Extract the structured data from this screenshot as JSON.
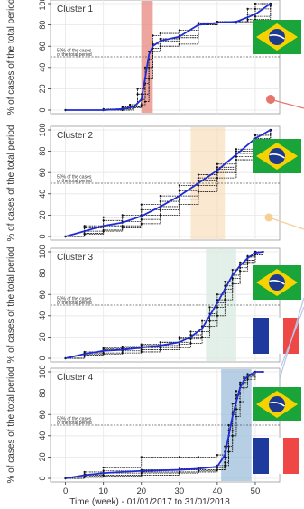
{
  "xlabel": "Time (week) - 01/01/2017 to 31/01/2018",
  "ylabel": "% of cases of the total period",
  "threshold_label_line1": "50% of the cases",
  "threshold_label_line2": "of the total period",
  "colors": {
    "median": "#1f2bd6",
    "member": "#111111",
    "threshold": "#555555",
    "cluster1_band": "#e8877f",
    "cluster2_band": "#f8d9b0",
    "cluster3_band": "#dcece3",
    "cluster4_band": "#9fbfdc",
    "flag_br_green": "#1aa53a",
    "flag_br_yellow": "#f6d300",
    "flag_br_blue": "#1d3a8f",
    "flag_fr_blue": "#1e3a9c",
    "flag_fr_red": "#ef4646"
  },
  "icons": [
    "brazil-flag-icon",
    "france-flag-icon"
  ],
  "chart_data": [
    {
      "type": "line",
      "title": "Cluster 1",
      "xlim": [
        -3,
        55
      ],
      "ylim": [
        0,
        100
      ],
      "xticks": [
        0,
        10,
        20,
        30,
        40,
        50
      ],
      "yticks": [
        0,
        20,
        40,
        60,
        80,
        100
      ],
      "threshold": 50,
      "band": [
        20,
        23
      ],
      "series": [
        {
          "x": [
            0,
            10,
            15,
            18,
            20,
            21,
            22,
            23,
            25,
            30,
            35,
            40,
            45,
            48,
            50,
            52,
            54
          ],
          "y": [
            0,
            0,
            1,
            3,
            10,
            25,
            48,
            62,
            65,
            68,
            80,
            82,
            82,
            85,
            95,
            100,
            100
          ]
        },
        {
          "x": [
            0,
            10,
            15,
            17,
            19,
            21,
            23,
            25,
            30,
            35,
            40,
            45,
            48,
            50,
            54
          ],
          "y": [
            0,
            1,
            2,
            5,
            15,
            40,
            58,
            67,
            68,
            80,
            83,
            83,
            90,
            100,
            100
          ]
        },
        {
          "x": [
            0,
            10,
            15,
            18,
            20,
            22,
            23,
            25,
            30,
            35,
            40,
            45,
            50,
            54
          ],
          "y": [
            0,
            0,
            0,
            2,
            15,
            55,
            70,
            72,
            75,
            82,
            83,
            83,
            85,
            100
          ]
        },
        {
          "x": [
            0,
            10,
            17,
            19,
            21,
            22,
            23,
            25,
            30,
            35,
            40,
            45,
            50,
            54
          ],
          "y": [
            0,
            0,
            5,
            20,
            30,
            40,
            55,
            60,
            62,
            80,
            82,
            82,
            88,
            98
          ]
        },
        {
          "x": [
            0,
            10,
            15,
            20,
            21,
            22,
            23,
            25,
            30,
            35,
            40,
            45,
            48,
            54
          ],
          "y": [
            0,
            0,
            3,
            5,
            8,
            30,
            55,
            67,
            70,
            81,
            83,
            83,
            95,
            100
          ]
        }
      ],
      "median": {
        "x": [
          0,
          10,
          15,
          18,
          20,
          21,
          22,
          23,
          25,
          30,
          35,
          40,
          45,
          50,
          54
        ],
        "y": [
          0,
          0,
          1,
          3,
          10,
          30,
          52,
          60,
          65,
          69,
          80,
          82,
          83,
          90,
          100
        ]
      }
    },
    {
      "type": "line",
      "title": "Cluster 2",
      "xlim": [
        -3,
        55
      ],
      "ylim": [
        0,
        100
      ],
      "xticks": [
        0,
        10,
        20,
        30,
        40,
        50
      ],
      "yticks": [
        0,
        20,
        40,
        60,
        80,
        100
      ],
      "threshold": 50,
      "band": [
        33,
        42
      ],
      "series": [
        {
          "x": [
            0,
            5,
            10,
            15,
            20,
            25,
            30,
            35,
            40,
            45,
            50,
            54
          ],
          "y": [
            0,
            5,
            10,
            14,
            20,
            28,
            38,
            52,
            63,
            78,
            92,
            100
          ]
        },
        {
          "x": [
            0,
            5,
            10,
            15,
            20,
            25,
            30,
            35,
            40,
            45,
            50,
            54
          ],
          "y": [
            0,
            8,
            15,
            18,
            25,
            33,
            43,
            55,
            65,
            80,
            95,
            100
          ]
        },
        {
          "x": [
            0,
            5,
            10,
            15,
            20,
            25,
            30,
            35,
            40,
            45,
            50,
            54
          ],
          "y": [
            0,
            3,
            6,
            10,
            16,
            25,
            35,
            48,
            60,
            75,
            90,
            100
          ]
        },
        {
          "x": [
            0,
            5,
            10,
            15,
            20,
            25,
            30,
            35,
            40,
            45,
            50,
            54
          ],
          "y": [
            0,
            10,
            18,
            20,
            30,
            38,
            48,
            58,
            68,
            82,
            95,
            100
          ]
        },
        {
          "x": [
            0,
            5,
            10,
            15,
            20,
            25,
            30,
            35,
            40,
            45,
            50,
            54
          ],
          "y": [
            0,
            2,
            5,
            8,
            12,
            20,
            30,
            42,
            55,
            72,
            88,
            100
          ]
        }
      ],
      "median": {
        "x": [
          0,
          5,
          10,
          15,
          20,
          25,
          30,
          35,
          40,
          45,
          50,
          54
        ],
        "y": [
          0,
          5,
          10,
          13,
          19,
          28,
          38,
          50,
          62,
          77,
          92,
          100
        ]
      }
    },
    {
      "type": "line",
      "title": "Cluster 3",
      "xlim": [
        -3,
        55
      ],
      "ylim": [
        0,
        100
      ],
      "xticks": [
        0,
        10,
        20,
        30,
        40,
        50
      ],
      "yticks": [
        0,
        20,
        40,
        60,
        80,
        100
      ],
      "threshold": 50,
      "band": [
        37,
        45
      ],
      "series": [
        {
          "x": [
            0,
            5,
            10,
            15,
            20,
            25,
            30,
            33,
            36,
            38,
            40,
            42,
            44,
            46,
            48,
            50,
            52
          ],
          "y": [
            0,
            4,
            8,
            9,
            10,
            12,
            15,
            18,
            25,
            35,
            48,
            62,
            75,
            85,
            92,
            98,
            100
          ]
        },
        {
          "x": [
            0,
            5,
            10,
            15,
            20,
            25,
            30,
            33,
            36,
            38,
            40,
            42,
            44,
            46,
            48,
            50,
            52
          ],
          "y": [
            0,
            3,
            5,
            7,
            8,
            10,
            13,
            20,
            30,
            42,
            55,
            68,
            80,
            88,
            95,
            100,
            100
          ]
        },
        {
          "x": [
            0,
            5,
            10,
            15,
            20,
            25,
            30,
            33,
            36,
            38,
            40,
            42,
            44,
            46,
            48,
            50,
            52
          ],
          "y": [
            0,
            6,
            10,
            10,
            12,
            15,
            20,
            25,
            35,
            48,
            60,
            72,
            83,
            90,
            96,
            100,
            100
          ]
        },
        {
          "x": [
            0,
            5,
            10,
            15,
            20,
            25,
            30,
            33,
            36,
            38,
            40,
            42,
            44,
            46,
            48,
            50,
            52
          ],
          "y": [
            0,
            2,
            4,
            5,
            6,
            8,
            10,
            14,
            20,
            30,
            40,
            55,
            70,
            82,
            90,
            97,
            100
          ]
        },
        {
          "x": [
            0,
            5,
            10,
            15,
            20,
            25,
            30,
            33,
            36,
            38,
            40,
            42,
            44,
            46,
            48,
            50,
            52
          ],
          "y": [
            0,
            5,
            9,
            11,
            13,
            15,
            18,
            22,
            30,
            40,
            52,
            65,
            78,
            88,
            95,
            100,
            100
          ]
        }
      ],
      "median": {
        "x": [
          0,
          5,
          10,
          15,
          20,
          25,
          30,
          33,
          36,
          38,
          40,
          42,
          44,
          46,
          48,
          50,
          52
        ],
        "y": [
          0,
          4,
          7,
          8,
          10,
          12,
          15,
          20,
          28,
          40,
          52,
          65,
          78,
          87,
          94,
          99,
          100
        ]
      }
    },
    {
      "type": "line",
      "title": "Cluster 4",
      "xlim": [
        -3,
        55
      ],
      "ylim": [
        0,
        100
      ],
      "xticks": [
        0,
        10,
        20,
        30,
        40,
        50
      ],
      "yticks": [
        0,
        20,
        40,
        60,
        80,
        100
      ],
      "threshold": 50,
      "band": [
        41,
        49
      ],
      "series": [
        {
          "x": [
            0,
            5,
            10,
            20,
            30,
            35,
            40,
            42,
            43,
            44,
            45,
            46,
            47,
            48,
            50,
            52
          ],
          "y": [
            0,
            3,
            5,
            6,
            8,
            8,
            10,
            20,
            40,
            60,
            75,
            85,
            92,
            96,
            100,
            100
          ]
        },
        {
          "x": [
            0,
            5,
            10,
            20,
            30,
            35,
            40,
            42,
            43,
            44,
            45,
            46,
            47,
            48,
            50,
            52
          ],
          "y": [
            0,
            1,
            2,
            3,
            5,
            6,
            8,
            15,
            30,
            45,
            65,
            80,
            90,
            95,
            100,
            100
          ]
        },
        {
          "x": [
            0,
            5,
            10,
            20,
            30,
            35,
            40,
            42,
            43,
            44,
            45,
            46,
            47,
            48,
            50,
            52
          ],
          "y": [
            0,
            6,
            10,
            20,
            20,
            20,
            22,
            30,
            50,
            70,
            82,
            90,
            95,
            98,
            100,
            100
          ]
        },
        {
          "x": [
            0,
            5,
            10,
            20,
            30,
            35,
            40,
            42,
            43,
            44,
            45,
            46,
            47,
            48,
            50,
            52
          ],
          "y": [
            0,
            2,
            3,
            5,
            6,
            7,
            8,
            12,
            25,
            40,
            58,
            72,
            85,
            93,
            100,
            100
          ]
        },
        {
          "x": [
            0,
            5,
            10,
            20,
            30,
            35,
            40,
            42,
            43,
            44,
            45,
            46,
            47,
            48,
            50,
            52
          ],
          "y": [
            0,
            4,
            7,
            8,
            9,
            10,
            12,
            25,
            45,
            62,
            78,
            88,
            94,
            97,
            100,
            100
          ]
        }
      ],
      "median": {
        "x": [
          0,
          5,
          10,
          20,
          30,
          35,
          40,
          42,
          43,
          44,
          45,
          46,
          47,
          48,
          50,
          52
        ],
        "y": [
          0,
          3,
          5,
          7,
          8,
          9,
          11,
          22,
          40,
          58,
          72,
          85,
          92,
          96,
          100,
          100
        ]
      }
    }
  ]
}
